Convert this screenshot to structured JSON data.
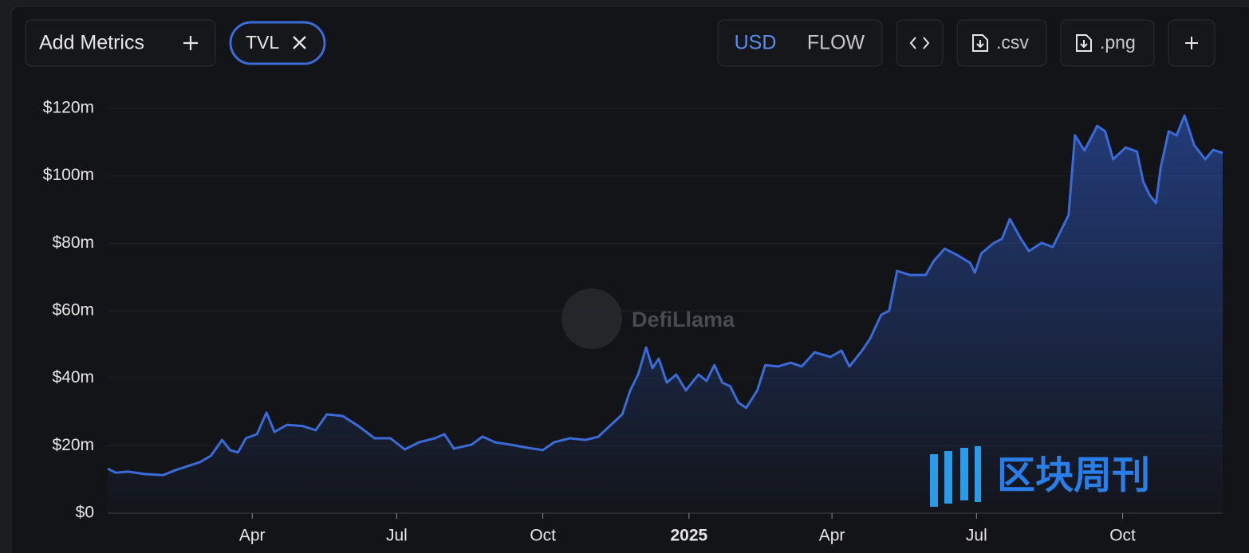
{
  "ui": {
    "add_metrics": "Add Metrics",
    "currency_options": [
      "USD",
      "FLOW"
    ],
    "active_currency": 0,
    "csv": ".csv",
    "png": ".png",
    "watermark": "DefiLlama",
    "publisher_mark": "区块周刊"
  },
  "chart_data": {
    "type": "area",
    "x": [
      0,
      5,
      13,
      23,
      35,
      43,
      50,
      58,
      65,
      72,
      77,
      82,
      87,
      94,
      100,
      105,
      113,
      123,
      131,
      138,
      148,
      158,
      168,
      178,
      187,
      196,
      206,
      212,
      218,
      229,
      236,
      244,
      254,
      264,
      274,
      281,
      291,
      301,
      309,
      316,
      324,
      329,
      334,
      339,
      343,
      347,
      352,
      358,
      364,
      372,
      377,
      382,
      387,
      392,
      397,
      402,
      409,
      414,
      422,
      430,
      437,
      445,
      455,
      462,
      467,
      475,
      480,
      487,
      492,
      497,
      505,
      515,
      520,
      527,
      535,
      543,
      546,
      550,
      558,
      563,
      568,
      575,
      580,
      588,
      595,
      600,
      605,
      609,
      615,
      623,
      628,
      633,
      641,
      648,
      652,
      656,
      660,
      663,
      668,
      673,
      678,
      684,
      691,
      696,
      702
    ],
    "series": [
      {
        "name": "TVL",
        "color": "#3b6ad9",
        "values": [
          13.2,
          12,
          12.3,
          11.6,
          11.3,
          12.8,
          13.9,
          15.1,
          17,
          21.7,
          18.7,
          18,
          22.2,
          23.4,
          29.8,
          24.1,
          26.2,
          25.8,
          24.6,
          29.3,
          28.8,
          25.8,
          22.2,
          22.2,
          18.9,
          21,
          22.2,
          23.4,
          19.1,
          20.3,
          22.7,
          21,
          20.3,
          19.4,
          18.7,
          21,
          22.2,
          21.7,
          22.7,
          25.8,
          29.3,
          36.4,
          41.1,
          49.1,
          43,
          45.8,
          38.7,
          41.1,
          36.4,
          41.1,
          39.2,
          43.9,
          38.7,
          37.6,
          32.8,
          31.2,
          36.4,
          43.9,
          43.5,
          44.6,
          43.5,
          47.7,
          46.3,
          48.2,
          43.5,
          48.2,
          51.7,
          58.8,
          60,
          71.8,
          70.6,
          70.6,
          74.7,
          78.4,
          76.5,
          74.2,
          71.3,
          77,
          80.1,
          81.3,
          87.2,
          81.3,
          77.7,
          80.1,
          78.9,
          83.6,
          88.4,
          112,
          107.5,
          114.8,
          113.2,
          104.9,
          108.4,
          107.2,
          98.3,
          94.3,
          91.9,
          102.5,
          113.2,
          112,
          117.9,
          109.1,
          104.9,
          107.7,
          106.8
        ]
      }
    ],
    "xlim": [
      0,
      702
    ],
    "xticks": [
      {
        "value": 91,
        "label": "Apr"
      },
      {
        "value": 182,
        "label": "Jul"
      },
      {
        "value": 274,
        "label": "Oct"
      },
      {
        "value": 366,
        "label": "2025"
      },
      {
        "value": 456,
        "label": "Apr"
      },
      {
        "value": 547,
        "label": "Jul"
      },
      {
        "value": 639,
        "label": "Oct"
      }
    ],
    "ylim": [
      0,
      120
    ],
    "yticks": [
      {
        "value": 0,
        "label": "$0"
      },
      {
        "value": 20,
        "label": "$20m"
      },
      {
        "value": 40,
        "label": "$40m"
      },
      {
        "value": 60,
        "label": "$60m"
      },
      {
        "value": 80,
        "label": "$80m"
      },
      {
        "value": 100,
        "label": "$100m"
      },
      {
        "value": 120,
        "label": "$120m"
      }
    ],
    "grid": true
  }
}
